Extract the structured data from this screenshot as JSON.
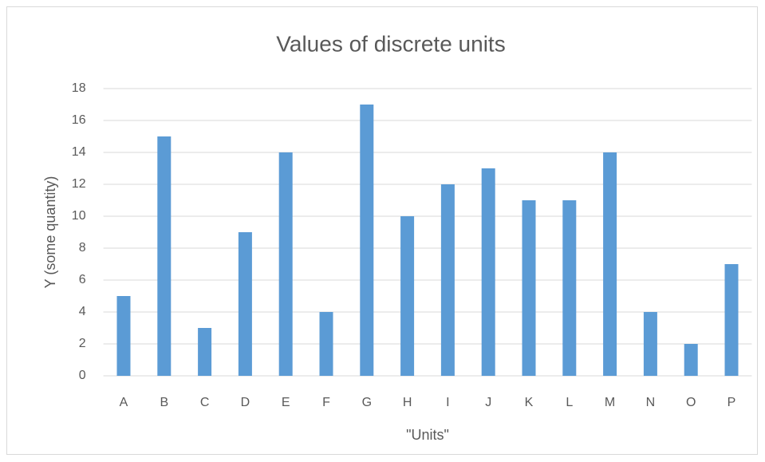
{
  "chart_data": {
    "type": "bar",
    "title": "Values of discrete units",
    "x_label": "\"Units\"",
    "y_label": "Y (some quantity)",
    "categories": [
      "A",
      "B",
      "C",
      "D",
      "E",
      "F",
      "G",
      "H",
      "I",
      "J",
      "K",
      "L",
      "M",
      "N",
      "O",
      "P"
    ],
    "values": [
      5,
      15,
      3,
      9,
      14,
      4,
      17,
      10,
      12,
      13,
      11,
      11,
      14,
      4,
      2,
      7
    ],
    "color": "#5b9bd5",
    "ylim": [
      0,
      18
    ],
    "yticks": [
      0,
      2,
      4,
      6,
      8,
      10,
      12,
      14,
      16,
      18
    ],
    "grid": true
  }
}
